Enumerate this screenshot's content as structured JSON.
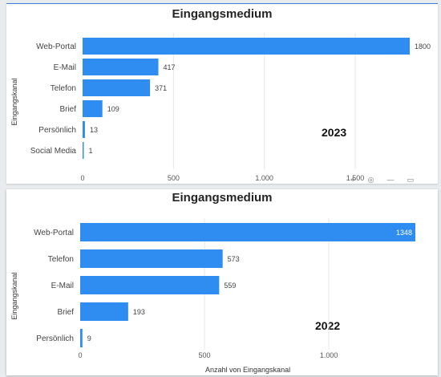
{
  "chart_data": [
    {
      "type": "bar",
      "orientation": "horizontal",
      "title": "Eingangsmedium",
      "year_label": "2023",
      "ylabel": "Eingangskanal",
      "xlabel": "",
      "categories": [
        "Web-Portal",
        "E-Mail",
        "Telefon",
        "Brief",
        "Persönlich",
        "Social Media"
      ],
      "values": [
        1800,
        417,
        371,
        109,
        13,
        1
      ],
      "value_labels": [
        "1800",
        "417",
        "371",
        "109",
        "13",
        "1"
      ],
      "xticks": [
        0,
        500,
        1000,
        1500
      ],
      "xtick_labels": [
        "0",
        "500",
        "1.000",
        "1.500"
      ],
      "xlim": [
        0,
        1800
      ],
      "bar_color": "#2f8cf0",
      "grid": true
    },
    {
      "type": "bar",
      "orientation": "horizontal",
      "title": "Eingangsmedium",
      "year_label": "2022",
      "ylabel": "Eingangskanal",
      "xlabel": "Anzahl von Eingangskanal",
      "categories": [
        "Web-Portal",
        "Telefon",
        "E-Mail",
        "Brief",
        "Persönlich"
      ],
      "values": [
        1348,
        573,
        559,
        193,
        9
      ],
      "value_labels": [
        "1348",
        "573",
        "559",
        "193",
        "9"
      ],
      "xticks": [
        0,
        500,
        1000
      ],
      "xtick_labels": [
        "0",
        "500",
        "1.000"
      ],
      "xlim": [
        0,
        1348
      ],
      "bar_color": "#2f8cf0",
      "grid": true
    }
  ],
  "toolbar_icons": [
    "pin-icon",
    "copy-icon",
    "filter-icon",
    "focus-icon"
  ]
}
